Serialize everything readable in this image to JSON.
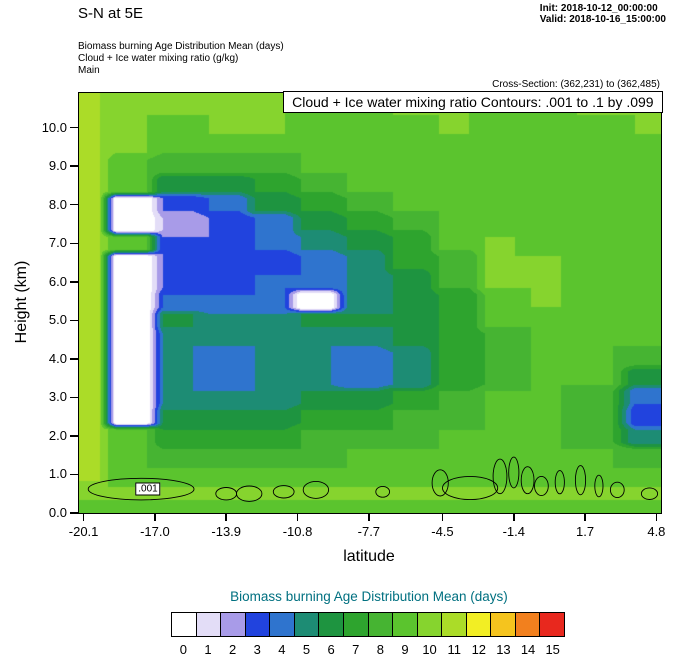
{
  "header": {
    "title": "S-N at 5E",
    "init": "Init: 2018-10-12_00:00:00",
    "valid": "Valid: 2018-10-16_15:00:00",
    "field_lines": [
      "Biomass burning Age Distribution Mean   (days)",
      "Cloud + Ice water mixing ratio   (g/kg)",
      "Main"
    ],
    "cross_section": "Cross-Section: (362,231) to (362,485)"
  },
  "plot": {
    "contour_title": "Cloud + Ice water mixing ratio Contours: .001 to .1 by .099",
    "xlabel": "latitude",
    "ylabel": "Height (km)",
    "contour_label": ".001",
    "x_tick_labels": [
      "-20.1",
      "-17.0",
      "-13.9",
      "-10.8",
      "-7.7",
      "-4.5",
      "-1.4",
      "1.7",
      "4.8"
    ],
    "y_tick_labels": [
      "0.0",
      "1.0",
      "2.0",
      "3.0",
      "4.0",
      "5.0",
      "6.0",
      "7.0",
      "8.0",
      "9.0",
      "10.0"
    ]
  },
  "colorbar": {
    "title": "Biomass burning Age Distribution Mean  (days)",
    "title_color": "#007080",
    "labels": [
      "0",
      "1",
      "2",
      "3",
      "4",
      "5",
      "6",
      "7",
      "8",
      "9",
      "10",
      "11",
      "12",
      "13",
      "14",
      "15"
    ],
    "colors": [
      "#FFFFFF",
      "#E3DDF7",
      "#A89BE8",
      "#2143DE",
      "#2F74CE",
      "#1D8C74",
      "#1E9440",
      "#2EA42E",
      "#46B432",
      "#5BC42E",
      "#86D42E",
      "#ABDC28",
      "#F2EE24",
      "#F5C41E",
      "#F2801E",
      "#E8281E"
    ]
  },
  "chart_data": {
    "type": "heatmap",
    "title": "Biomass burning Age Distribution Mean (days), S-N cross-section at 5E",
    "xlabel": "latitude",
    "ylabel": "Height (km)",
    "unit": "days",
    "xlim": [
      -20.3,
      5.0
    ],
    "ylim": [
      0,
      10.9
    ],
    "x_tick_values": [
      -20.1,
      -17.0,
      -13.9,
      -10.8,
      -7.7,
      -4.5,
      -1.4,
      1.7,
      4.8
    ],
    "y_tick_values": [
      0,
      1,
      2,
      3,
      4,
      5,
      6,
      7,
      8,
      9,
      10
    ],
    "x": [
      -20.1,
      -18,
      -16,
      -14,
      -12,
      -10,
      -8,
      -6,
      -4,
      -2,
      0,
      2,
      4.8
    ],
    "y": [
      0,
      0.5,
      1,
      1.5,
      2,
      2.5,
      3,
      3.5,
      4,
      4.5,
      5,
      5.5,
      6,
      6.5,
      7,
      7.5,
      8,
      8.5,
      9,
      9.5,
      10,
      10.5
    ],
    "values": [
      [
        9,
        9,
        9,
        9,
        9,
        9,
        9,
        9,
        9,
        9,
        9,
        9,
        9
      ],
      [
        10,
        10,
        10,
        10,
        10,
        10,
        10,
        10,
        10,
        10,
        10,
        10,
        10
      ],
      [
        11,
        9,
        9,
        9,
        9,
        9,
        9,
        9,
        9,
        9,
        9,
        9,
        9
      ],
      [
        11,
        9,
        8,
        8,
        8,
        8,
        9,
        9,
        9,
        9,
        9,
        9,
        8
      ],
      [
        11,
        9,
        7,
        7,
        7,
        8,
        8,
        8,
        9,
        9,
        9,
        8,
        5
      ],
      [
        11,
        0,
        6,
        6,
        6,
        7,
        7,
        8,
        8,
        9,
        9,
        8,
        3
      ],
      [
        11,
        0,
        5,
        5,
        5,
        6,
        6,
        7,
        8,
        9,
        9,
        8,
        4
      ],
      [
        11,
        0,
        5,
        4,
        5,
        5,
        4,
        5,
        7,
        8,
        9,
        9,
        6
      ],
      [
        11,
        0,
        5,
        4,
        5,
        5,
        4,
        5,
        7,
        8,
        9,
        9,
        8
      ],
      [
        11,
        0,
        5,
        5,
        5,
        5,
        5,
        6,
        7,
        8,
        9,
        9,
        9
      ],
      [
        11,
        0,
        6,
        5,
        5,
        6,
        6,
        6,
        7,
        9,
        9,
        9,
        9
      ],
      [
        11,
        0,
        4,
        4,
        4,
        0,
        5,
        6,
        7,
        9,
        10,
        9,
        9
      ],
      [
        11,
        0,
        3,
        3,
        4,
        4,
        5,
        6,
        8,
        10,
        10,
        9,
        9
      ],
      [
        11,
        0,
        3,
        3,
        3,
        4,
        5,
        7,
        8,
        10,
        10,
        9,
        9
      ],
      [
        11,
        9,
        3,
        3,
        4,
        5,
        6,
        7,
        9,
        10,
        9,
        9,
        9
      ],
      [
        11,
        0,
        2,
        3,
        4,
        6,
        7,
        8,
        9,
        9,
        9,
        9,
        9
      ],
      [
        11,
        0,
        3,
        4,
        6,
        7,
        8,
        9,
        9,
        9,
        9,
        9,
        9
      ],
      [
        11,
        9,
        6,
        6,
        7,
        8,
        9,
        9,
        9,
        9,
        9,
        9,
        9
      ],
      [
        11,
        9,
        8,
        8,
        8,
        9,
        9,
        9,
        9,
        9,
        9,
        9,
        9
      ],
      [
        11,
        10,
        9,
        9,
        9,
        9,
        9,
        9,
        9,
        9,
        9,
        9,
        9
      ],
      [
        11,
        10,
        9,
        10,
        10,
        9,
        9,
        9,
        10,
        9,
        9,
        9,
        10
      ],
      [
        11,
        10,
        10,
        10,
        10,
        9,
        9,
        10,
        10,
        9,
        9,
        10,
        10
      ]
    ],
    "overlay_contours": {
      "field": "Cloud + Ice water mixing ratio (g/kg)",
      "levels": ".001 to .1 by .099",
      "label": ".001",
      "label_pos": {
        "lat": -17.3,
        "height": 0.62
      },
      "ellipses": [
        [
          -17.6,
          0.62,
          2.3,
          0.28
        ],
        [
          -13.9,
          0.5,
          0.45,
          0.16
        ],
        [
          -12.9,
          0.5,
          0.55,
          0.2
        ],
        [
          -11.4,
          0.55,
          0.45,
          0.16
        ],
        [
          -10.0,
          0.6,
          0.55,
          0.22
        ],
        [
          -7.1,
          0.55,
          0.3,
          0.14
        ],
        [
          -4.6,
          0.78,
          0.35,
          0.34
        ],
        [
          -3.3,
          0.65,
          1.2,
          0.3
        ],
        [
          -2.0,
          0.95,
          0.3,
          0.45
        ],
        [
          -1.4,
          1.05,
          0.22,
          0.4
        ],
        [
          -0.8,
          0.85,
          0.28,
          0.35
        ],
        [
          -0.2,
          0.7,
          0.3,
          0.25
        ],
        [
          0.6,
          0.8,
          0.2,
          0.3
        ],
        [
          1.5,
          0.85,
          0.22,
          0.38
        ],
        [
          2.3,
          0.7,
          0.18,
          0.28
        ],
        [
          3.1,
          0.6,
          0.3,
          0.2
        ],
        [
          4.5,
          0.5,
          0.35,
          0.15
        ]
      ]
    }
  }
}
